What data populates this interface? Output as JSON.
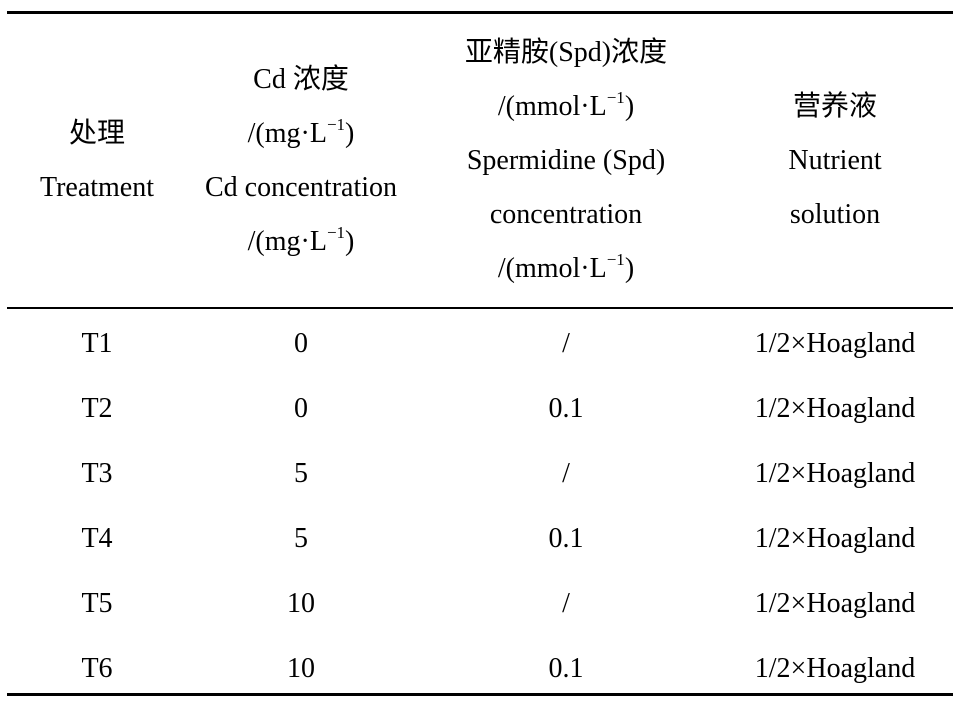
{
  "table": {
    "headers": [
      {
        "lines": [
          "处理",
          "Treatment"
        ]
      },
      {
        "lines": [
          "Cd 浓度",
          "/(mg·L",
          ")",
          "Cd concentration",
          "/(mg·L",
          ")"
        ],
        "unit_sup": "−1"
      },
      {
        "lines": [
          "亚精胺(Spd)浓度",
          "/(mmol·L",
          ")",
          "Spermidine (Spd)",
          "concentration",
          "/(mmol·L",
          ")"
        ],
        "unit_sup": "−1"
      },
      {
        "lines": [
          "营养液",
          "Nutrient",
          "solution"
        ]
      }
    ],
    "rows": [
      [
        "T1",
        "0",
        "/",
        "1/2×Hoagland"
      ],
      [
        "T2",
        "0",
        "0.1",
        "1/2×Hoagland"
      ],
      [
        "T3",
        "5",
        "/",
        "1/2×Hoagland"
      ],
      [
        "T4",
        "5",
        "0.1",
        "1/2×Hoagland"
      ],
      [
        "T5",
        "10",
        "/",
        "1/2×Hoagland"
      ],
      [
        "T6",
        "10",
        "0.1",
        "1/2×Hoagland"
      ]
    ]
  }
}
